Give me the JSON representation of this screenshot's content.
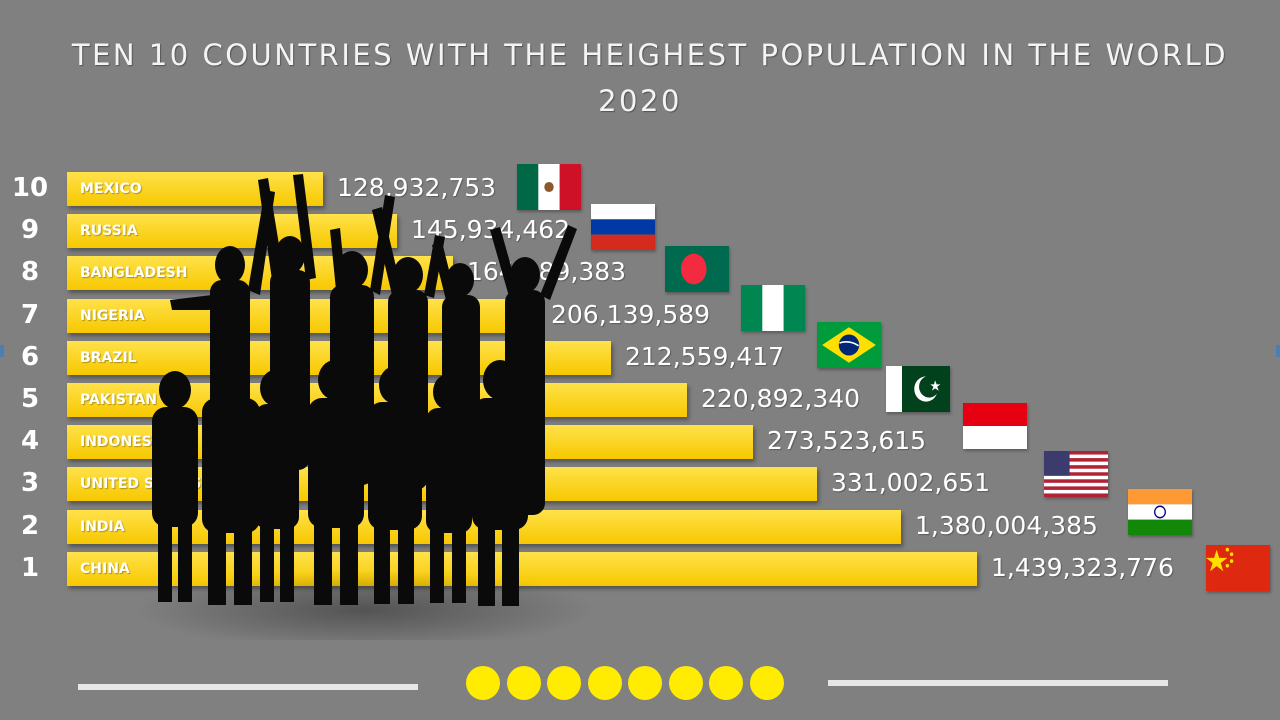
{
  "header": {
    "title_line1": "TEN 10 COUNTRIES WITH THE HEIGHEST POPULATION IN THE WORLD",
    "title_line2": "2020"
  },
  "chart_data": {
    "type": "bar",
    "orientation": "horizontal",
    "title": "TEN 10 COUNTRIES WITH THE HEIGHEST POPULATION IN THE WORLD 2020",
    "ranks": [
      "10",
      "9",
      "8",
      "7",
      "6",
      "5",
      "4",
      "3",
      "2",
      "1"
    ],
    "categories": [
      "MEXICO",
      "RUSSIA",
      "BANGLADESH",
      "NIGERIA",
      "BRAZIL",
      "PAKISTAN",
      "INDONESIA",
      "UNITED STATES",
      "INDIA",
      "CHINA"
    ],
    "values": [
      128932753,
      145934462,
      164689383,
      206139589,
      212559417,
      220892340,
      273523615,
      331002651,
      1380004385,
      1439323776
    ],
    "value_labels": [
      "128,932,753",
      "145,934,462",
      "164,689,383",
      "206,139,589",
      "212,559,417",
      "220,892,340",
      "273,523,615",
      "331,002,651",
      "1,380,004,385",
      "1,439,323,776"
    ],
    "flags": [
      "mexico-flag-icon",
      "russia-flag-icon",
      "bangladesh-flag-icon",
      "nigeria-flag-icon",
      "brazil-flag-icon",
      "pakistan-flag-icon",
      "indonesia-flag-icon",
      "usa-flag-icon",
      "india-flag-icon",
      "china-flag-icon"
    ],
    "bar_color": "#ffd400",
    "background_color": "#808080",
    "legend": "none",
    "grid": false
  },
  "decor": {
    "crowd_icon": "crowd-silhouette-icon",
    "dot_color": "#ffec00",
    "dot_count": 8
  }
}
